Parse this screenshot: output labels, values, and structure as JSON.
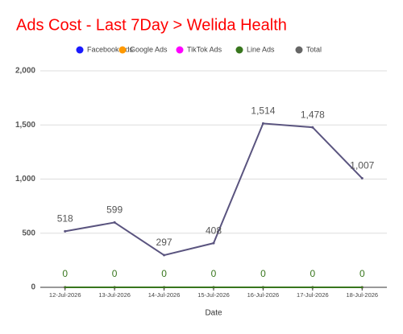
{
  "chart_data": {
    "type": "line",
    "title": "Ads Cost - Last 7Day > Welida Health",
    "x_label": "Date",
    "categories": [
      "12-Jul-2026",
      "13-Jul-2026",
      "14-Jul-2026",
      "15-Jul-2026",
      "16-Jul-2026",
      "17-Jul-2026",
      "18-Jul-2026"
    ],
    "series": [
      {
        "name": "Facebook Ads",
        "color": "#1a1aff",
        "values": [
          0,
          0,
          0,
          0,
          0,
          0,
          0
        ]
      },
      {
        "name": "Google Ads",
        "color": "#ff9900",
        "values": [
          0,
          0,
          0,
          0,
          0,
          0,
          0
        ]
      },
      {
        "name": "TikTok Ads",
        "color": "#ff00ff",
        "values": [
          0,
          0,
          0,
          0,
          0,
          0,
          0
        ]
      },
      {
        "name": "Line Ads",
        "color": "#38761d",
        "values": [
          0,
          0,
          0,
          0,
          0,
          0,
          0
        ],
        "data_labels": true
      },
      {
        "name": "Total",
        "color": "#5a547f",
        "values": [
          518,
          599,
          297,
          408,
          1514,
          1478,
          1007
        ],
        "data_labels": true,
        "value_labels": [
          "518",
          "599",
          "297",
          "408",
          "1,514",
          "1,478",
          "1,007"
        ]
      }
    ],
    "ylim": [
      0,
      2000
    ],
    "yticks": [
      0,
      500,
      {
        "value": 1000,
        "label": "1,000"
      },
      {
        "value": 1500,
        "label": "1,500"
      },
      {
        "value": 2000,
        "label": "2,000"
      }
    ],
    "grid": true
  }
}
